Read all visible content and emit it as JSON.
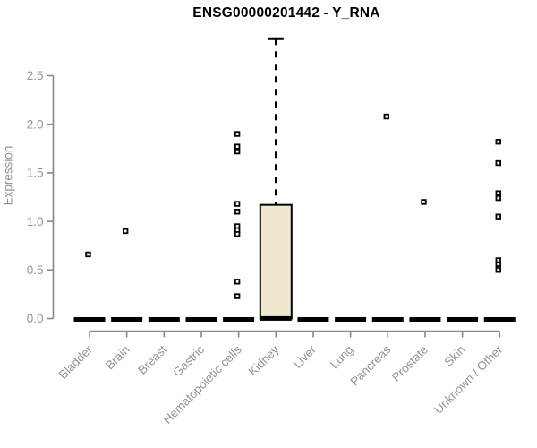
{
  "colors": {
    "title": "#000000",
    "axis": "#8a8a8a",
    "tick_label": "#949494",
    "category_label": "#949494",
    "ylabel": "#949494",
    "box_fill": "#ede8ce",
    "box_stroke": "#000000",
    "median": "#000000",
    "whisker": "#000000",
    "marker_stroke": "#000000",
    "marker_fill": "#ffffff",
    "background": "#ffffff"
  },
  "chart_data": {
    "type": "boxplot",
    "title": "ENSG00000201442 - Y_RNA",
    "xlabel": "",
    "ylabel": "Expression",
    "ylim": [
      0,
      2.9
    ],
    "yticks": [
      0.0,
      0.5,
      1.0,
      1.5,
      2.0,
      2.5
    ],
    "ytick_labels": [
      "0.0",
      "0.5",
      "1.0",
      "1.5",
      "2.0",
      "2.5"
    ],
    "grid": false,
    "legend": false,
    "marker_style": "open-square",
    "categories": [
      "Bladder",
      "Brain",
      "Breast",
      "Gastric",
      "Hematopoietic cells",
      "Kidney",
      "Liver",
      "Lung",
      "Pancreas",
      "Prostate",
      "Skin",
      "Unknown / Other"
    ],
    "boxes": [
      {
        "category": "Bladder",
        "q1": 0,
        "median": 0,
        "q3": 0,
        "whisker_low": 0,
        "whisker_high": 0,
        "outliers": [
          0.66
        ]
      },
      {
        "category": "Brain",
        "q1": 0,
        "median": 0,
        "q3": 0,
        "whisker_low": 0,
        "whisker_high": 0,
        "outliers": [
          0.9
        ]
      },
      {
        "category": "Breast",
        "q1": 0,
        "median": 0,
        "q3": 0,
        "whisker_low": 0,
        "whisker_high": 0,
        "outliers": []
      },
      {
        "category": "Gastric",
        "q1": 0,
        "median": 0,
        "q3": 0,
        "whisker_low": 0,
        "whisker_high": 0,
        "outliers": []
      },
      {
        "category": "Hematopoietic cells",
        "q1": 0,
        "median": 0,
        "q3": 0,
        "whisker_low": 0,
        "whisker_high": 0,
        "outliers": [
          1.9,
          1.77,
          1.72,
          1.18,
          1.1,
          0.95,
          0.91,
          0.87,
          0.38,
          0.23
        ]
      },
      {
        "category": "Kidney",
        "q1": 0,
        "median": 0.01,
        "q3": 1.17,
        "whisker_low": 0,
        "whisker_high": 2.88,
        "outliers": []
      },
      {
        "category": "Liver",
        "q1": 0,
        "median": 0,
        "q3": 0,
        "whisker_low": 0,
        "whisker_high": 0,
        "outliers": []
      },
      {
        "category": "Lung",
        "q1": 0,
        "median": 0,
        "q3": 0,
        "whisker_low": 0,
        "whisker_high": 0,
        "outliers": []
      },
      {
        "category": "Pancreas",
        "q1": 0,
        "median": 0,
        "q3": 0,
        "whisker_low": 0,
        "whisker_high": 0,
        "outliers": [
          2.08
        ]
      },
      {
        "category": "Prostate",
        "q1": 0,
        "median": 0,
        "q3": 0,
        "whisker_low": 0,
        "whisker_high": 0,
        "outliers": [
          1.2
        ]
      },
      {
        "category": "Skin",
        "q1": 0,
        "median": 0,
        "q3": 0,
        "whisker_low": 0,
        "whisker_high": 0,
        "outliers": []
      },
      {
        "category": "Unknown / Other",
        "q1": 0,
        "median": 0,
        "q3": 0,
        "whisker_low": 0,
        "whisker_high": 0,
        "outliers": [
          1.82,
          1.6,
          1.29,
          1.24,
          1.05,
          0.6,
          0.56,
          0.5
        ]
      }
    ]
  }
}
